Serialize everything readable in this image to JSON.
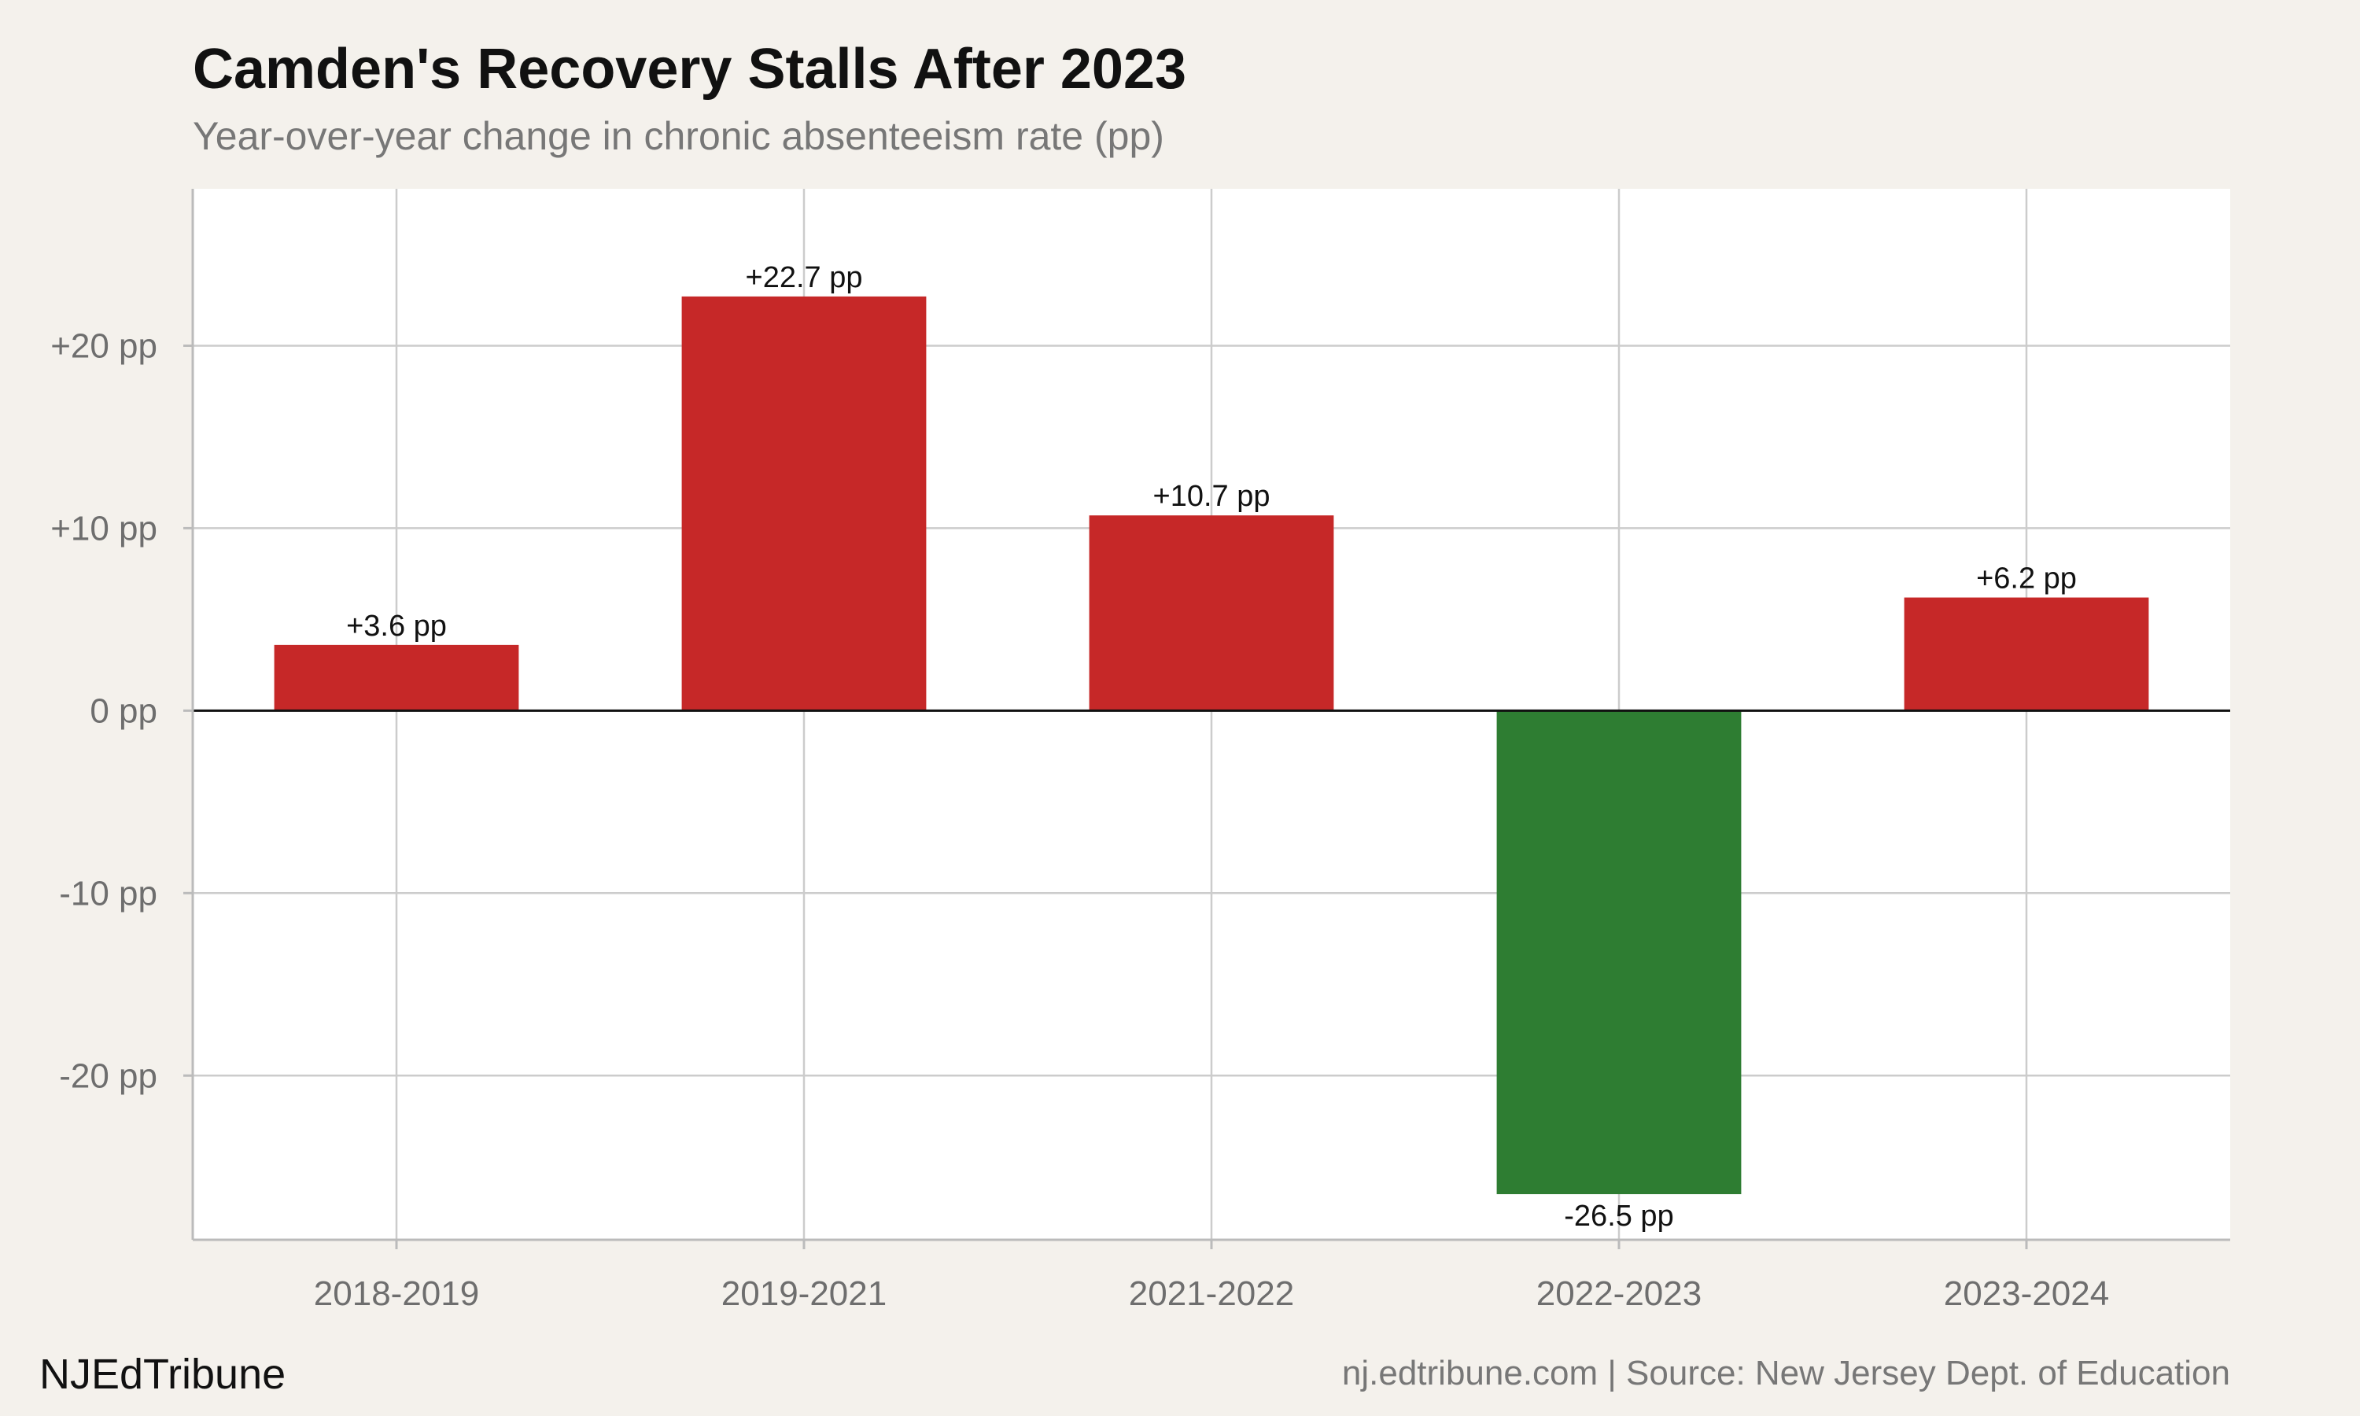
{
  "chart_data": {
    "type": "bar",
    "title": "Camden's Recovery Stalls After 2023",
    "subtitle": "Year-over-year change in chronic absenteeism rate (pp)",
    "xlabel": "",
    "ylabel": "",
    "categories": [
      "2018-2019",
      "2019-2021",
      "2021-2022",
      "2022-2023",
      "2023-2024"
    ],
    "values": [
      3.6,
      22.7,
      10.7,
      -26.5,
      6.2
    ],
    "data_labels": [
      "+3.6 pp",
      "+22.7 pp",
      "+10.7 pp",
      "-26.5 pp",
      "+6.2 pp"
    ],
    "ylim": [
      -29,
      28.6
    ],
    "yticks": [
      20,
      10,
      0,
      -10,
      -20
    ],
    "ytick_labels": [
      "+20 pp",
      "+10 pp",
      "0 pp",
      "-10 pp",
      "-20 pp"
    ],
    "grid": true,
    "colors": {
      "increase": "#c62828",
      "decrease": "#2e7d32"
    }
  },
  "footer": {
    "brand": "NJEdTribune",
    "source": "nj.edtribune.com | Source: New Jersey Dept. of Education"
  },
  "colors": {
    "background": "#f4f1ec",
    "plot_background": "#ffffff",
    "grid": "#cccccc"
  }
}
